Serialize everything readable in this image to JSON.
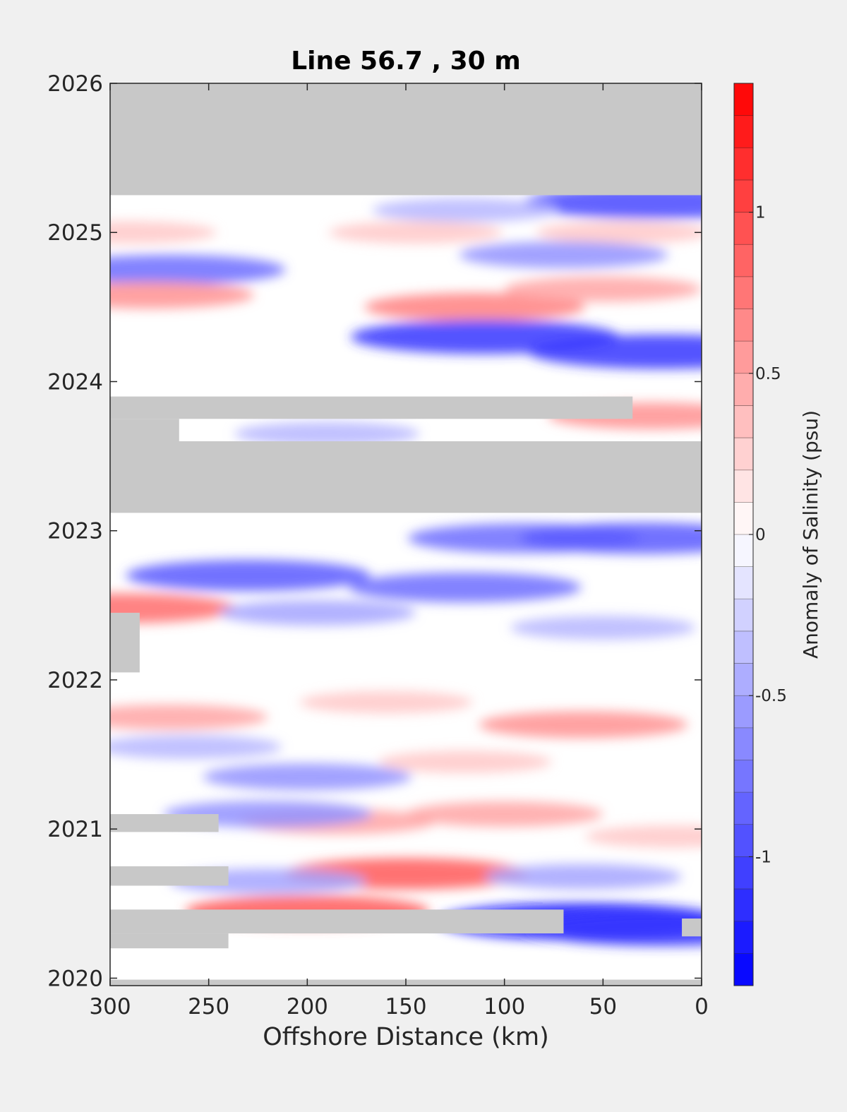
{
  "chart_data": {
    "type": "heatmap",
    "title": "Line 56.7 , 30 m",
    "xlabel": "Offshore Distance (km)",
    "ylabel": "",
    "x_reversed": true,
    "xlim": [
      0,
      300
    ],
    "ylim": [
      2019.95,
      2026.0
    ],
    "xticks": [
      300,
      250,
      200,
      150,
      100,
      50,
      0
    ],
    "yticks": [
      2020,
      2021,
      2022,
      2023,
      2024,
      2025,
      2026
    ],
    "colorbar": {
      "label": "Anomaly of Salinity (psu)",
      "range": [
        -1.4,
        1.4
      ],
      "step": 0.1,
      "ticks": [
        1,
        0.5,
        0,
        -0.5,
        -1
      ],
      "tick_labels": [
        "1",
        "0.5",
        "0",
        "-0.5",
        "-1"
      ],
      "colors": {
        "negative": "#0000ff",
        "zero": "#ffffff",
        "positive": "#ff0000",
        "no_data": "#c8c8c8"
      }
    },
    "no_data_bands": [
      {
        "x": [
          0,
          300
        ],
        "y": [
          2025.25,
          2026.0
        ]
      },
      {
        "x": [
          0,
          300
        ],
        "y": [
          2023.12,
          2023.6
        ]
      },
      {
        "x": [
          35,
          300
        ],
        "y": [
          2023.75,
          2023.9
        ]
      },
      {
        "x": [
          265,
          300
        ],
        "y": [
          2023.6,
          2023.75
        ]
      },
      {
        "x": [
          285,
          300
        ],
        "y": [
          2022.05,
          2022.45
        ]
      },
      {
        "x": [
          245,
          300
        ],
        "y": [
          2020.98,
          2021.1
        ]
      },
      {
        "x": [
          240,
          300
        ],
        "y": [
          2020.62,
          2020.75
        ]
      },
      {
        "x": [
          70,
          300
        ],
        "y": [
          2020.3,
          2020.46
        ]
      },
      {
        "x": [
          240,
          300
        ],
        "y": [
          2020.2,
          2020.3
        ]
      },
      {
        "x": [
          0,
          10
        ],
        "y": [
          2020.28,
          2020.4
        ]
      },
      {
        "x": [
          0,
          300
        ],
        "y": [
          2019.95,
          2019.99
        ]
      }
    ],
    "anomaly_features": [
      {
        "x": 25,
        "y": 2025.2,
        "value": -1.0
      },
      {
        "x": 120,
        "y": 2025.15,
        "value": -0.4
      },
      {
        "x": 290,
        "y": 2025.0,
        "value": 0.3
      },
      {
        "x": 40,
        "y": 2025.0,
        "value": 0.3
      },
      {
        "x": 145,
        "y": 2025.0,
        "value": 0.3
      },
      {
        "x": 270,
        "y": 2024.75,
        "value": -0.8
      },
      {
        "x": 70,
        "y": 2024.85,
        "value": -0.6
      },
      {
        "x": 280,
        "y": 2024.58,
        "value": 0.6
      },
      {
        "x": 115,
        "y": 2024.5,
        "value": 0.7
      },
      {
        "x": 50,
        "y": 2024.62,
        "value": 0.5
      },
      {
        "x": 110,
        "y": 2024.3,
        "value": -1.1
      },
      {
        "x": 20,
        "y": 2024.2,
        "value": -1.1
      },
      {
        "x": 25,
        "y": 2023.77,
        "value": 0.6
      },
      {
        "x": 190,
        "y": 2023.65,
        "value": -0.4
      },
      {
        "x": 90,
        "y": 2022.95,
        "value": -0.8
      },
      {
        "x": 30,
        "y": 2022.95,
        "value": -0.9
      },
      {
        "x": 230,
        "y": 2022.7,
        "value": -0.9
      },
      {
        "x": 120,
        "y": 2022.62,
        "value": -0.8
      },
      {
        "x": 295,
        "y": 2022.48,
        "value": 0.8
      },
      {
        "x": 195,
        "y": 2022.45,
        "value": -0.5
      },
      {
        "x": 50,
        "y": 2022.35,
        "value": -0.4
      },
      {
        "x": 270,
        "y": 2021.75,
        "value": 0.5
      },
      {
        "x": 60,
        "y": 2021.7,
        "value": 0.6
      },
      {
        "x": 160,
        "y": 2021.85,
        "value": 0.3
      },
      {
        "x": 260,
        "y": 2021.55,
        "value": -0.4
      },
      {
        "x": 200,
        "y": 2021.35,
        "value": -0.6
      },
      {
        "x": 120,
        "y": 2021.45,
        "value": 0.3
      },
      {
        "x": 185,
        "y": 2021.05,
        "value": 0.5
      },
      {
        "x": 100,
        "y": 2021.1,
        "value": 0.5
      },
      {
        "x": 220,
        "y": 2021.1,
        "value": -0.6
      },
      {
        "x": 15,
        "y": 2020.95,
        "value": 0.3
      },
      {
        "x": 150,
        "y": 2020.7,
        "value": 0.9
      },
      {
        "x": 60,
        "y": 2020.68,
        "value": -0.5
      },
      {
        "x": 220,
        "y": 2020.65,
        "value": -0.5
      },
      {
        "x": 200,
        "y": 2020.45,
        "value": 0.9
      },
      {
        "x": 60,
        "y": 2020.38,
        "value": -1.3
      },
      {
        "x": 20,
        "y": 2020.33,
        "value": -1.1
      }
    ]
  }
}
